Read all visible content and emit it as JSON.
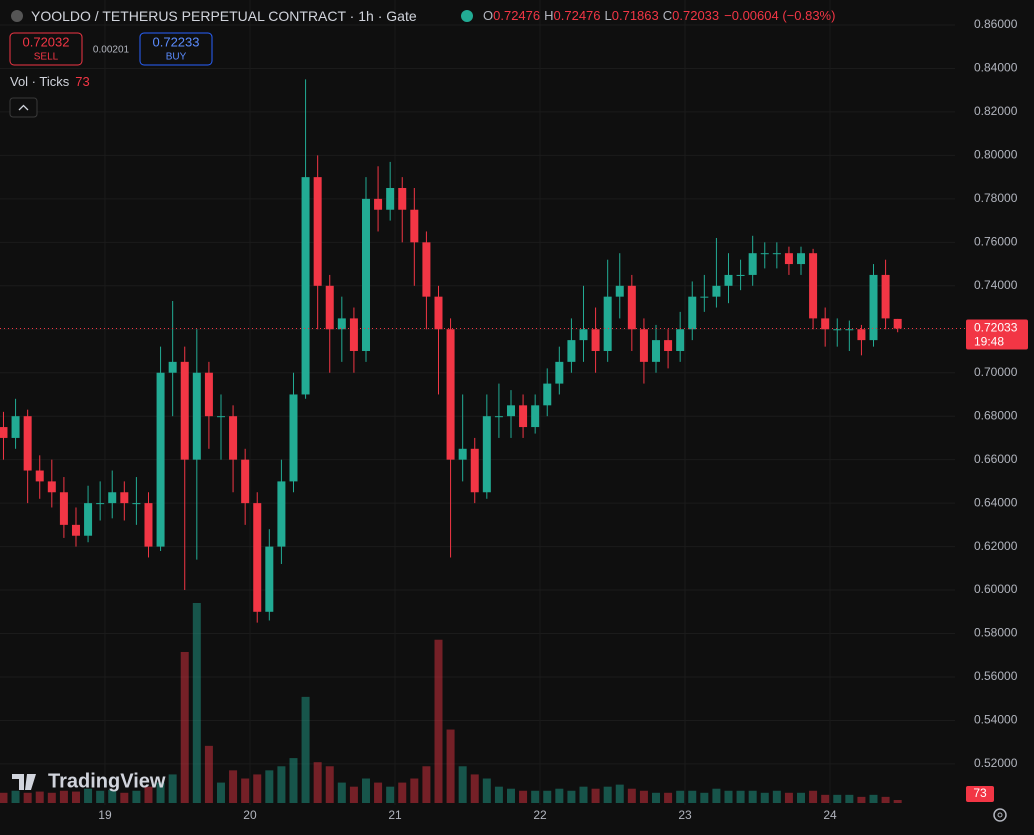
{
  "chart_data": {
    "type": "candlestick",
    "title": "YOOLDO / TETHERUS PERPETUAL CONTRACT",
    "interval": "1h",
    "exchange": "Gate",
    "ohlc_labels": [
      "O",
      "H",
      "L",
      "C"
    ],
    "change_text": "−0.00604 (−0.83%)",
    "sell_price": 0.72032,
    "sell_label": "SELL",
    "spread": 0.00201,
    "buy_price": 0.72233,
    "buy_label": "BUY",
    "volume_title": "Vol · Ticks",
    "countdown": "19:48",
    "watermark": "TradingView",
    "up_color": "#22ab94",
    "down_color": "#f23645",
    "grid": true,
    "xlim": [
      18.276,
      24.862
    ],
    "xticks": [
      19,
      20,
      21,
      22,
      23,
      24
    ],
    "ylim": [
      0.5011,
      0.8715
    ],
    "yticks": [
      {
        "value": 0.52,
        "label": "0.52000"
      },
      {
        "value": 0.54,
        "label": "0.54000"
      },
      {
        "value": 0.56,
        "label": "0.56000"
      },
      {
        "value": 0.58,
        "label": "0.58000"
      },
      {
        "value": 0.6,
        "label": "0.60000"
      },
      {
        "value": 0.62,
        "label": "0.62000"
      },
      {
        "value": 0.64,
        "label": "0.64000"
      },
      {
        "value": 0.66,
        "label": "0.66000"
      },
      {
        "value": 0.68,
        "label": "0.68000"
      },
      {
        "value": 0.7,
        "label": "0.70000"
      },
      {
        "value": 0.72,
        "label": "0.72000"
      },
      {
        "value": 0.74,
        "label": "0.74000"
      },
      {
        "value": 0.76,
        "label": "0.76000"
      },
      {
        "value": 0.78,
        "label": "0.78000"
      },
      {
        "value": 0.8,
        "label": "0.80000"
      },
      {
        "value": 0.82,
        "label": "0.82000"
      },
      {
        "value": 0.84,
        "label": "0.84000"
      },
      {
        "value": 0.86,
        "label": "0.86000"
      }
    ],
    "x": [
      18.3,
      18.3833,
      18.4667,
      18.55,
      18.6333,
      18.7167,
      18.8,
      18.8833,
      18.9667,
      19.05,
      19.1333,
      19.2167,
      19.3,
      19.3833,
      19.4667,
      19.55,
      19.6333,
      19.7167,
      19.8,
      19.8833,
      19.9667,
      20.05,
      20.1333,
      20.2167,
      20.3,
      20.3833,
      20.4667,
      20.55,
      20.6333,
      20.7167,
      20.8,
      20.8833,
      20.9667,
      21.05,
      21.1333,
      21.2167,
      21.3,
      21.3833,
      21.4667,
      21.55,
      21.6333,
      21.7167,
      21.8,
      21.8833,
      21.9667,
      22.05,
      22.1333,
      22.2167,
      22.3,
      22.3833,
      22.4667,
      22.55,
      22.6333,
      22.7167,
      22.8,
      22.8833,
      22.9667,
      23.05,
      23.1333,
      23.2167,
      23.3,
      23.3833,
      23.4667,
      23.55,
      23.6333,
      23.7167,
      23.8,
      23.8833,
      23.9667,
      24.05,
      24.1333,
      24.2167,
      24.3,
      24.3833,
      24.4667
    ],
    "open": [
      0.675,
      0.67,
      0.68,
      0.655,
      0.65,
      0.645,
      0.63,
      0.625,
      0.64,
      0.64,
      0.645,
      0.64,
      0.64,
      0.62,
      0.7,
      0.705,
      0.66,
      0.7,
      0.68,
      0.68,
      0.66,
      0.64,
      0.59,
      0.62,
      0.65,
      0.69,
      0.79,
      0.74,
      0.72,
      0.725,
      0.71,
      0.78,
      0.775,
      0.785,
      0.775,
      0.76,
      0.735,
      0.72,
      0.66,
      0.665,
      0.645,
      0.68,
      0.68,
      0.685,
      0.675,
      0.685,
      0.695,
      0.705,
      0.715,
      0.72,
      0.71,
      0.735,
      0.74,
      0.72,
      0.705,
      0.715,
      0.71,
      0.72,
      0.735,
      0.735,
      0.74,
      0.745,
      0.745,
      0.755,
      0.755,
      0.755,
      0.75,
      0.755,
      0.725,
      0.72,
      0.72,
      0.72,
      0.715,
      0.745,
      0.72476
    ],
    "high": [
      0.682,
      0.688,
      0.683,
      0.662,
      0.66,
      0.652,
      0.638,
      0.648,
      0.65,
      0.655,
      0.65,
      0.652,
      0.645,
      0.712,
      0.733,
      0.712,
      0.72,
      0.705,
      0.69,
      0.685,
      0.665,
      0.645,
      0.628,
      0.66,
      0.7,
      0.835,
      0.8,
      0.745,
      0.735,
      0.73,
      0.79,
      0.795,
      0.797,
      0.79,
      0.785,
      0.765,
      0.74,
      0.725,
      0.69,
      0.67,
      0.69,
      0.695,
      0.692,
      0.69,
      0.69,
      0.702,
      0.712,
      0.725,
      0.74,
      0.73,
      0.752,
      0.755,
      0.745,
      0.725,
      0.722,
      0.72,
      0.728,
      0.742,
      0.745,
      0.762,
      0.755,
      0.752,
      0.763,
      0.76,
      0.76,
      0.758,
      0.758,
      0.757,
      0.73,
      0.725,
      0.724,
      0.722,
      0.75,
      0.752,
      0.72476
    ],
    "low": [
      0.66,
      0.665,
      0.64,
      0.642,
      0.638,
      0.624,
      0.62,
      0.622,
      0.632,
      0.633,
      0.632,
      0.63,
      0.615,
      0.618,
      0.68,
      0.6,
      0.614,
      0.665,
      0.66,
      0.645,
      0.63,
      0.585,
      0.586,
      0.612,
      0.645,
      0.688,
      0.72,
      0.7,
      0.705,
      0.7,
      0.705,
      0.765,
      0.77,
      0.76,
      0.74,
      0.72,
      0.69,
      0.615,
      0.65,
      0.64,
      0.642,
      0.67,
      0.67,
      0.67,
      0.672,
      0.68,
      0.69,
      0.7,
      0.705,
      0.7,
      0.705,
      0.725,
      0.71,
      0.695,
      0.7,
      0.702,
      0.705,
      0.715,
      0.728,
      0.73,
      0.732,
      0.738,
      0.74,
      0.748,
      0.748,
      0.745,
      0.745,
      0.72,
      0.712,
      0.712,
      0.71,
      0.708,
      0.712,
      0.72,
      0.71863
    ],
    "close": [
      0.67,
      0.68,
      0.655,
      0.65,
      0.645,
      0.63,
      0.625,
      0.64,
      0.64,
      0.645,
      0.64,
      0.64,
      0.62,
      0.7,
      0.705,
      0.66,
      0.7,
      0.68,
      0.68,
      0.66,
      0.64,
      0.59,
      0.62,
      0.65,
      0.69,
      0.79,
      0.74,
      0.72,
      0.725,
      0.71,
      0.78,
      0.775,
      0.785,
      0.775,
      0.76,
      0.735,
      0.72,
      0.66,
      0.665,
      0.645,
      0.68,
      0.68,
      0.685,
      0.675,
      0.685,
      0.695,
      0.705,
      0.715,
      0.72,
      0.71,
      0.735,
      0.74,
      0.72,
      0.705,
      0.715,
      0.71,
      0.72,
      0.735,
      0.735,
      0.74,
      0.745,
      0.745,
      0.755,
      0.755,
      0.755,
      0.75,
      0.755,
      0.725,
      0.72,
      0.72,
      0.72,
      0.715,
      0.745,
      0.725,
      0.72033
    ],
    "volume": [
      250,
      300,
      250,
      280,
      250,
      300,
      280,
      350,
      300,
      320,
      250,
      300,
      400,
      500,
      700,
      3700,
      4900,
      1400,
      500,
      800,
      600,
      700,
      800,
      900,
      1100,
      2600,
      1000,
      900,
      500,
      400,
      600,
      500,
      400,
      500,
      600,
      900,
      4000,
      1800,
      900,
      700,
      600,
      400,
      350,
      300,
      300,
      300,
      350,
      300,
      400,
      350,
      400,
      450,
      350,
      300,
      250,
      250,
      300,
      300,
      250,
      350,
      300,
      300,
      300,
      250,
      300,
      250,
      250,
      300,
      200,
      200,
      200,
      150,
      200,
      150,
      73
    ]
  }
}
